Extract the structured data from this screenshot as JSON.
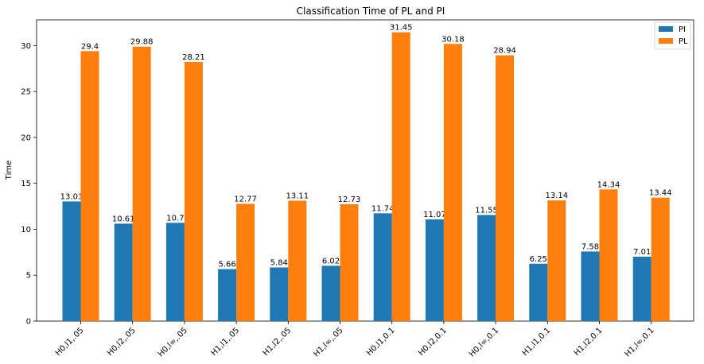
{
  "chart_data": {
    "type": "bar",
    "title": "Classification Time of PL and PI",
    "xlabel": "",
    "ylabel": "Time",
    "ylim": [
      0,
      32.8
    ],
    "yticks": [
      0,
      5,
      10,
      15,
      20,
      25,
      30
    ],
    "categories": [
      "H0,l1,.05",
      "H0,l2,.05",
      "H0,l∞,.05",
      "H1,l1,.05",
      "H1,l2,.05",
      "H1,l∞,.05",
      "H0,l1,0.1",
      "H0,l2,0.1",
      "H0,l∞,0.1",
      "H1,l1,0.1",
      "H1,l2,0.1",
      "H1,l∞,0.1"
    ],
    "series": [
      {
        "name": "PI",
        "color": "#1f77b4",
        "values": [
          13.03,
          10.61,
          10.7,
          5.66,
          5.84,
          6.02,
          11.74,
          11.07,
          11.55,
          6.25,
          7.58,
          7.01
        ]
      },
      {
        "name": "PL",
        "color": "#ff7f0e",
        "values": [
          29.4,
          29.88,
          28.21,
          12.77,
          13.11,
          12.73,
          31.45,
          30.18,
          28.94,
          13.14,
          14.34,
          13.44
        ]
      }
    ],
    "legend": "top-right",
    "grid": false
  }
}
